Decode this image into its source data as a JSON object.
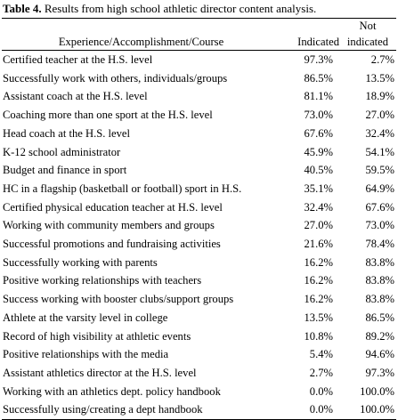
{
  "caption": {
    "label": "Table 4.",
    "text": " Results from high school athletic director content analysis."
  },
  "table": {
    "headers": {
      "col1": "Experience/Accomplishment/Course",
      "col2": "Indicated",
      "col3_line1": "Not",
      "col3_line2": "indicated"
    },
    "rows": [
      {
        "label": "Certified teacher at the H.S. level",
        "indicated": "97.3%",
        "not_indicated": "2.7%"
      },
      {
        "label": "Successfully work with others, individuals/groups",
        "indicated": "86.5%",
        "not_indicated": "13.5%"
      },
      {
        "label": "Assistant coach at the H.S. level",
        "indicated": "81.1%",
        "not_indicated": "18.9%"
      },
      {
        "label": "Coaching more than one sport at the H.S. level",
        "indicated": "73.0%",
        "not_indicated": "27.0%"
      },
      {
        "label": "Head coach at the H.S. level",
        "indicated": "67.6%",
        "not_indicated": "32.4%"
      },
      {
        "label": "K-12 school administrator",
        "indicated": "45.9%",
        "not_indicated": "54.1%"
      },
      {
        "label": "Budget and finance in sport",
        "indicated": "40.5%",
        "not_indicated": "59.5%"
      },
      {
        "label": "HC in a flagship (basketball or football) sport in H.S.",
        "indicated": "35.1%",
        "not_indicated": "64.9%"
      },
      {
        "label": "Certified physical education teacher at H.S. level",
        "indicated": "32.4%",
        "not_indicated": "67.6%"
      },
      {
        "label": "Working with community members and groups",
        "indicated": "27.0%",
        "not_indicated": "73.0%"
      },
      {
        "label": "Successful promotions and fundraising activities",
        "indicated": "21.6%",
        "not_indicated": "78.4%"
      },
      {
        "label": "Successfully working with parents",
        "indicated": "16.2%",
        "not_indicated": "83.8%"
      },
      {
        "label": "Positive working relationships with teachers",
        "indicated": "16.2%",
        "not_indicated": "83.8%"
      },
      {
        "label": "Success working with booster clubs/support groups",
        "indicated": "16.2%",
        "not_indicated": "83.8%"
      },
      {
        "label": "Athlete at the varsity level in college",
        "indicated": "13.5%",
        "not_indicated": "86.5%"
      },
      {
        "label": "Record of high visibility at athletic events",
        "indicated": "10.8%",
        "not_indicated": "89.2%"
      },
      {
        "label": "Positive relationships with the media",
        "indicated": "5.4%",
        "not_indicated": "94.6%"
      },
      {
        "label": "Assistant athletics director at the H.S. level",
        "indicated": "2.7%",
        "not_indicated": "97.3%"
      },
      {
        "label": "Working with an athletics dept. policy handbook",
        "indicated": "0.0%",
        "not_indicated": "100.0%"
      },
      {
        "label": "Successfully using/creating a dept handbook",
        "indicated": "0.0%",
        "not_indicated": "100.0%"
      }
    ]
  }
}
